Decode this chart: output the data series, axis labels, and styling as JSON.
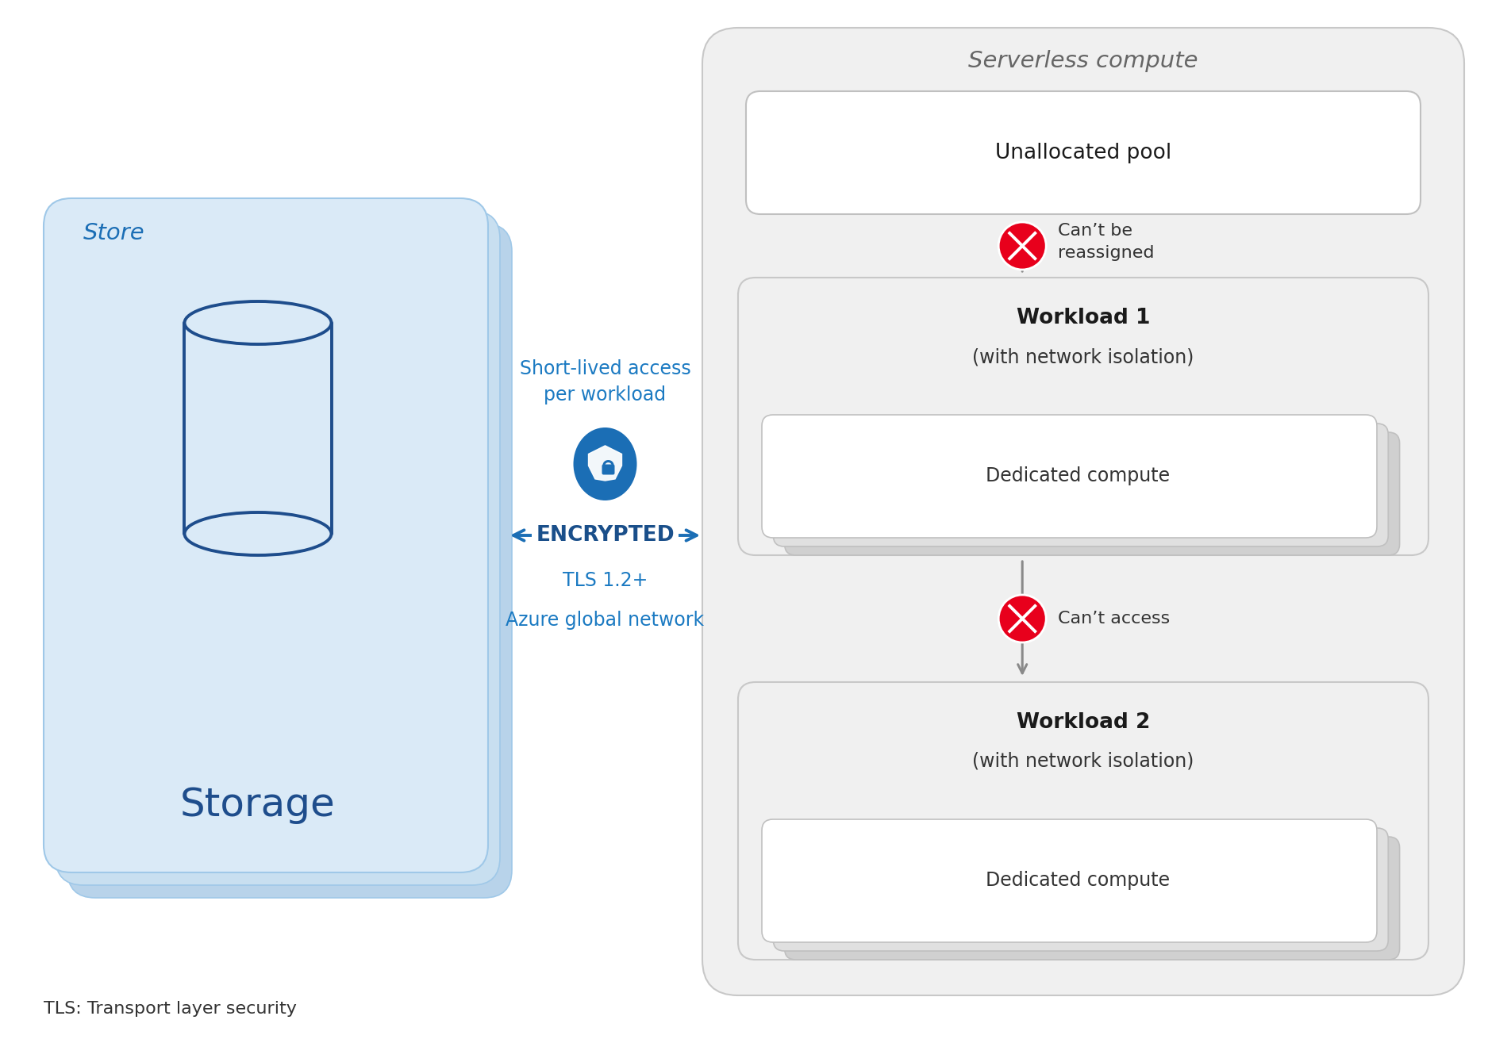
{
  "bg_color": "#ffffff",
  "store_bg": "#daeaf7",
  "store_bg_shadow1": "#c8dff0",
  "store_bg_shadow2": "#b8d3ea",
  "store_border": "#9fc8e8",
  "serverless_bg": "#f0f0f0",
  "serverless_border": "#c8c8c8",
  "box_bg": "#ffffff",
  "box_border": "#c0c0c0",
  "dc_shadow1": "#e0e0e0",
  "dc_shadow2": "#d0d0d0",
  "blue_dark": "#1e4d8c",
  "blue_mid": "#1b6eb5",
  "blue_arrow": "#1b6eb5",
  "blue_text": "#1b7ac2",
  "encrypted_blue": "#1a4f8a",
  "icon_blue": "#1b6eb5",
  "red_fill": "#e8001c",
  "red_border": "#c00018",
  "gray_arrow": "#8a8a8a",
  "text_dark": "#1a1a1a",
  "text_mid": "#333333",
  "serverless_title_color": "#666666",
  "title_serverless": "Serverless compute",
  "title_store": "Store",
  "storage_label": "Storage",
  "unallocated_label": "Unallocated pool",
  "workload1_label": "Workload 1",
  "workload1_sub": "(with network isolation)",
  "workload2_label": "Workload 2",
  "workload2_sub": "(with network isolation)",
  "dedicated1_label": "Dedicated compute",
  "dedicated2_label": "Dedicated compute",
  "encrypted_label": "ENCRYPTED",
  "tls_label": "TLS 1.2+",
  "network_label": "Azure global network",
  "short_lived_label": "Short-lived access\nper workload",
  "cant_be_reassigned": "Can’t be\nreassigned",
  "cant_access": "Can’t access",
  "footnote": "TLS: Transport layer security"
}
